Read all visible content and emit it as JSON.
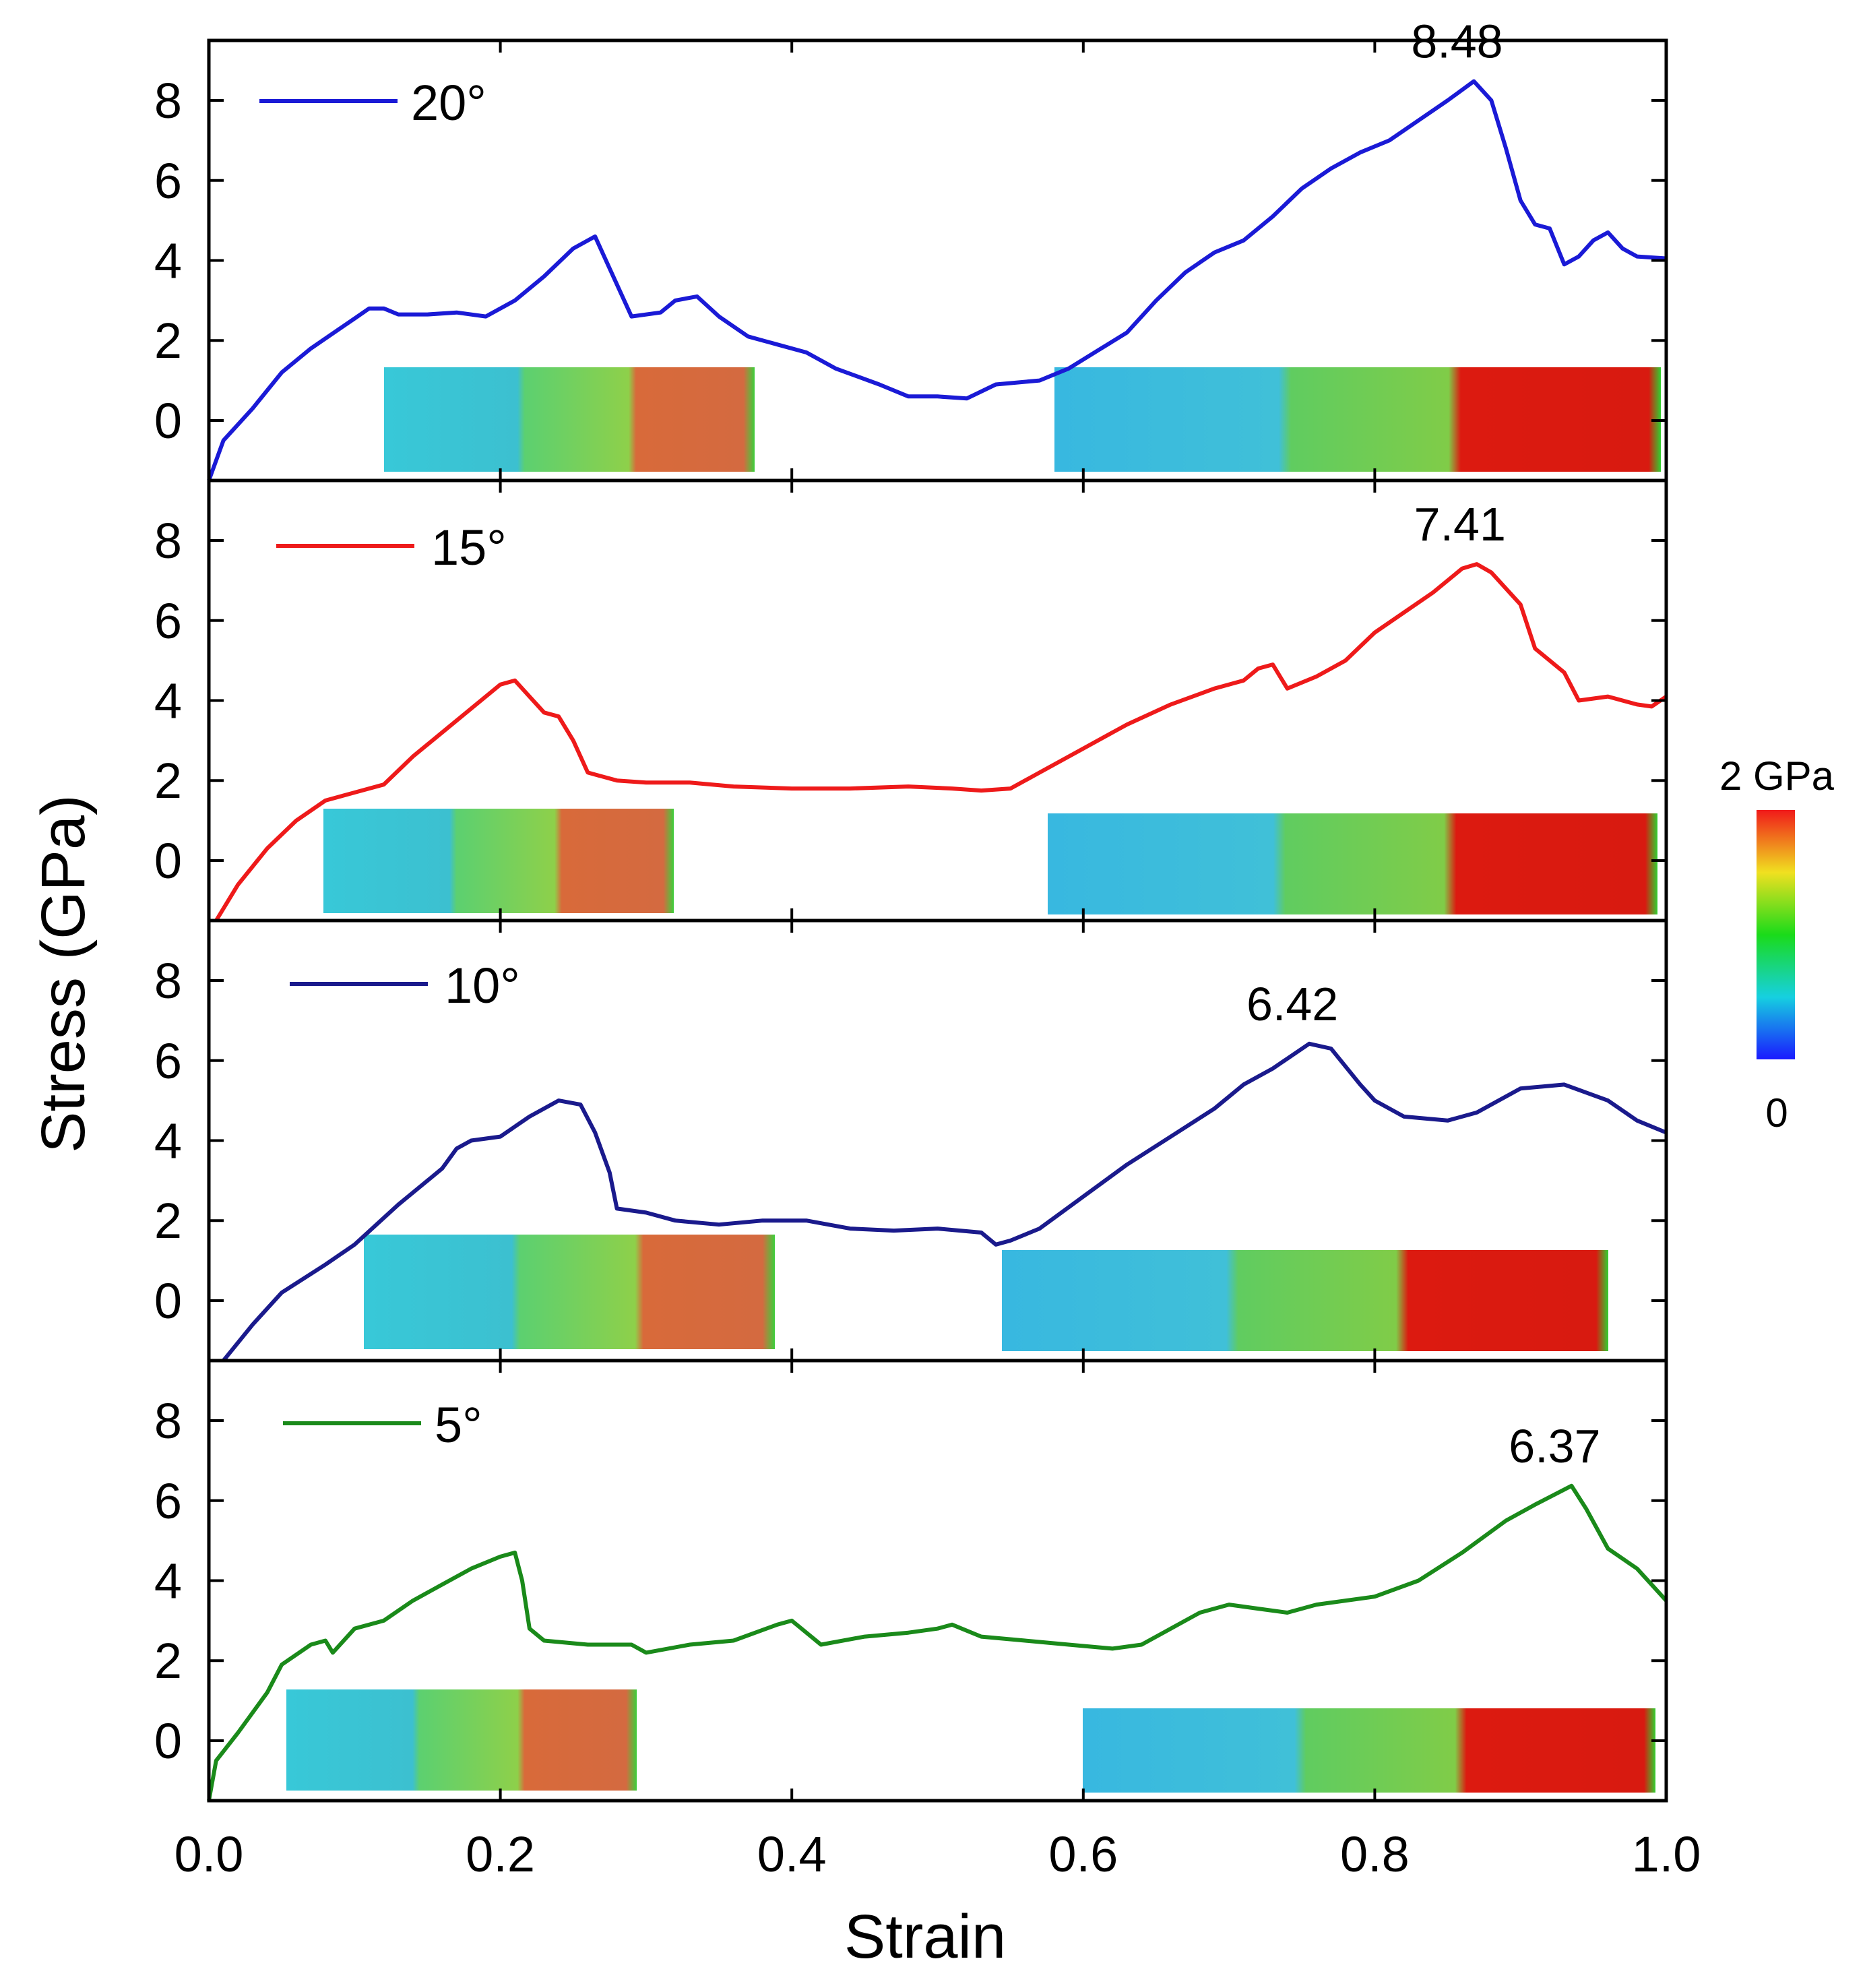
{
  "chart_data": {
    "type": "line",
    "xlabel": "Strain",
    "ylabel": "Stress (GPa)",
    "xlim": [
      0.0,
      1.0
    ],
    "ylim": [
      -1.5,
      9.5
    ],
    "xticks": [
      "0.0",
      "0.2",
      "0.4",
      "0.6",
      "0.8",
      "1.0"
    ],
    "xtick_values": [
      0.0,
      0.2,
      0.4,
      0.6,
      0.8,
      1.0
    ],
    "yticks": [
      "0",
      "2",
      "4",
      "6",
      "8"
    ],
    "ytick_values": [
      0,
      2,
      4,
      6,
      8
    ],
    "colorbar": {
      "max_label": "2 GPa",
      "min_label": "0"
    },
    "series": [
      {
        "name": "20°",
        "angle": "20",
        "color": "#1a1ad6",
        "peak_label": "8.48",
        "peak": [
          0.868,
          8.48
        ],
        "points": [
          [
            0,
            -1.5
          ],
          [
            0.01,
            -0.5
          ],
          [
            0.03,
            0.3
          ],
          [
            0.05,
            1.2
          ],
          [
            0.07,
            1.8
          ],
          [
            0.09,
            2.3
          ],
          [
            0.1,
            2.55
          ],
          [
            0.11,
            2.8
          ],
          [
            0.12,
            2.8
          ],
          [
            0.13,
            2.65
          ],
          [
            0.15,
            2.65
          ],
          [
            0.17,
            2.7
          ],
          [
            0.19,
            2.6
          ],
          [
            0.21,
            3.0
          ],
          [
            0.23,
            3.6
          ],
          [
            0.25,
            4.3
          ],
          [
            0.265,
            4.6
          ],
          [
            0.275,
            3.8
          ],
          [
            0.29,
            2.6
          ],
          [
            0.31,
            2.7
          ],
          [
            0.32,
            3.0
          ],
          [
            0.335,
            3.1
          ],
          [
            0.35,
            2.6
          ],
          [
            0.37,
            2.1
          ],
          [
            0.39,
            1.9
          ],
          [
            0.41,
            1.7
          ],
          [
            0.43,
            1.3
          ],
          [
            0.46,
            0.9
          ],
          [
            0.48,
            0.6
          ],
          [
            0.5,
            0.6
          ],
          [
            0.52,
            0.55
          ],
          [
            0.54,
            0.9
          ],
          [
            0.57,
            1.0
          ],
          [
            0.59,
            1.3
          ],
          [
            0.61,
            1.75
          ],
          [
            0.63,
            2.2
          ],
          [
            0.65,
            3.0
          ],
          [
            0.67,
            3.7
          ],
          [
            0.69,
            4.2
          ],
          [
            0.71,
            4.5
          ],
          [
            0.73,
            5.1
          ],
          [
            0.75,
            5.8
          ],
          [
            0.77,
            6.3
          ],
          [
            0.79,
            6.7
          ],
          [
            0.81,
            7.0
          ],
          [
            0.83,
            7.5
          ],
          [
            0.85,
            8.0
          ],
          [
            0.868,
            8.48
          ],
          [
            0.88,
            8.0
          ],
          [
            0.89,
            6.8
          ],
          [
            0.9,
            5.5
          ],
          [
            0.91,
            4.9
          ],
          [
            0.92,
            4.8
          ],
          [
            0.93,
            3.9
          ],
          [
            0.94,
            4.1
          ],
          [
            0.95,
            4.5
          ],
          [
            0.96,
            4.7
          ],
          [
            0.97,
            4.3
          ],
          [
            0.98,
            4.1
          ],
          [
            1.0,
            4.05
          ]
        ]
      },
      {
        "name": "15°",
        "angle": "15",
        "color": "#ee1a1a",
        "peak_label": "7.41",
        "peak": [
          0.87,
          7.41
        ],
        "points": [
          [
            0.005,
            -1.5
          ],
          [
            0.02,
            -0.6
          ],
          [
            0.04,
            0.3
          ],
          [
            0.06,
            1.0
          ],
          [
            0.08,
            1.5
          ],
          [
            0.1,
            1.7
          ],
          [
            0.12,
            1.9
          ],
          [
            0.14,
            2.6
          ],
          [
            0.16,
            3.2
          ],
          [
            0.18,
            3.8
          ],
          [
            0.2,
            4.4
          ],
          [
            0.21,
            4.5
          ],
          [
            0.22,
            4.1
          ],
          [
            0.23,
            3.7
          ],
          [
            0.24,
            3.6
          ],
          [
            0.25,
            3.0
          ],
          [
            0.26,
            2.2
          ],
          [
            0.28,
            2.0
          ],
          [
            0.3,
            1.95
          ],
          [
            0.33,
            1.95
          ],
          [
            0.36,
            1.85
          ],
          [
            0.4,
            1.8
          ],
          [
            0.44,
            1.8
          ],
          [
            0.48,
            1.85
          ],
          [
            0.51,
            1.8
          ],
          [
            0.53,
            1.75
          ],
          [
            0.55,
            1.8
          ],
          [
            0.57,
            2.2
          ],
          [
            0.6,
            2.8
          ],
          [
            0.63,
            3.4
          ],
          [
            0.66,
            3.9
          ],
          [
            0.69,
            4.3
          ],
          [
            0.71,
            4.5
          ],
          [
            0.72,
            4.8
          ],
          [
            0.73,
            4.9
          ],
          [
            0.74,
            4.3
          ],
          [
            0.76,
            4.6
          ],
          [
            0.78,
            5.0
          ],
          [
            0.8,
            5.7
          ],
          [
            0.82,
            6.2
          ],
          [
            0.84,
            6.7
          ],
          [
            0.86,
            7.3
          ],
          [
            0.87,
            7.41
          ],
          [
            0.88,
            7.2
          ],
          [
            0.9,
            6.4
          ],
          [
            0.91,
            5.3
          ],
          [
            0.93,
            4.7
          ],
          [
            0.94,
            4.0
          ],
          [
            0.96,
            4.1
          ],
          [
            0.98,
            3.9
          ],
          [
            0.99,
            3.85
          ],
          [
            1.0,
            4.1
          ]
        ]
      },
      {
        "name": "10°",
        "angle": "10",
        "color": "#1a1a8c",
        "peak_label": "6.42",
        "peak": [
          0.755,
          6.42
        ],
        "points": [
          [
            0.01,
            -1.5
          ],
          [
            0.03,
            -0.6
          ],
          [
            0.05,
            0.2
          ],
          [
            0.08,
            0.9
          ],
          [
            0.1,
            1.4
          ],
          [
            0.13,
            2.4
          ],
          [
            0.16,
            3.3
          ],
          [
            0.17,
            3.8
          ],
          [
            0.18,
            4.0
          ],
          [
            0.2,
            4.1
          ],
          [
            0.22,
            4.6
          ],
          [
            0.24,
            5.0
          ],
          [
            0.255,
            4.9
          ],
          [
            0.265,
            4.2
          ],
          [
            0.275,
            3.2
          ],
          [
            0.28,
            2.3
          ],
          [
            0.3,
            2.2
          ],
          [
            0.32,
            2.0
          ],
          [
            0.35,
            1.9
          ],
          [
            0.38,
            2.0
          ],
          [
            0.41,
            2.0
          ],
          [
            0.44,
            1.8
          ],
          [
            0.47,
            1.75
          ],
          [
            0.5,
            1.8
          ],
          [
            0.53,
            1.7
          ],
          [
            0.54,
            1.4
          ],
          [
            0.55,
            1.5
          ],
          [
            0.57,
            1.8
          ],
          [
            0.6,
            2.6
          ],
          [
            0.63,
            3.4
          ],
          [
            0.66,
            4.1
          ],
          [
            0.69,
            4.8
          ],
          [
            0.71,
            5.4
          ],
          [
            0.73,
            5.8
          ],
          [
            0.755,
            6.42
          ],
          [
            0.77,
            6.3
          ],
          [
            0.79,
            5.4
          ],
          [
            0.8,
            5.0
          ],
          [
            0.82,
            4.6
          ],
          [
            0.85,
            4.5
          ],
          [
            0.87,
            4.7
          ],
          [
            0.9,
            5.3
          ],
          [
            0.93,
            5.4
          ],
          [
            0.96,
            5.0
          ],
          [
            0.98,
            4.5
          ],
          [
            1.0,
            4.2
          ]
        ]
      },
      {
        "name": "5°",
        "angle": "5",
        "color": "#1a8a1a",
        "peak_label": "6.37",
        "peak": [
          0.935,
          6.37
        ],
        "points": [
          [
            0,
            -1.5
          ],
          [
            0.005,
            -0.5
          ],
          [
            0.02,
            0.2
          ],
          [
            0.04,
            1.2
          ],
          [
            0.05,
            1.9
          ],
          [
            0.07,
            2.4
          ],
          [
            0.08,
            2.5
          ],
          [
            0.085,
            2.2
          ],
          [
            0.1,
            2.8
          ],
          [
            0.12,
            3.0
          ],
          [
            0.14,
            3.5
          ],
          [
            0.16,
            3.9
          ],
          [
            0.18,
            4.3
          ],
          [
            0.2,
            4.6
          ],
          [
            0.21,
            4.7
          ],
          [
            0.215,
            4.0
          ],
          [
            0.22,
            2.8
          ],
          [
            0.23,
            2.5
          ],
          [
            0.26,
            2.4
          ],
          [
            0.29,
            2.4
          ],
          [
            0.3,
            2.2
          ],
          [
            0.33,
            2.4
          ],
          [
            0.36,
            2.5
          ],
          [
            0.39,
            2.9
          ],
          [
            0.4,
            3.0
          ],
          [
            0.41,
            2.7
          ],
          [
            0.42,
            2.4
          ],
          [
            0.45,
            2.6
          ],
          [
            0.48,
            2.7
          ],
          [
            0.5,
            2.8
          ],
          [
            0.51,
            2.9
          ],
          [
            0.53,
            2.6
          ],
          [
            0.56,
            2.5
          ],
          [
            0.59,
            2.4
          ],
          [
            0.62,
            2.3
          ],
          [
            0.64,
            2.4
          ],
          [
            0.66,
            2.8
          ],
          [
            0.68,
            3.2
          ],
          [
            0.7,
            3.4
          ],
          [
            0.72,
            3.3
          ],
          [
            0.74,
            3.2
          ],
          [
            0.76,
            3.4
          ],
          [
            0.8,
            3.6
          ],
          [
            0.83,
            4.0
          ],
          [
            0.86,
            4.7
          ],
          [
            0.89,
            5.5
          ],
          [
            0.91,
            5.9
          ],
          [
            0.935,
            6.37
          ],
          [
            0.945,
            5.8
          ],
          [
            0.96,
            4.8
          ],
          [
            0.98,
            4.3
          ],
          [
            1.0,
            3.5
          ]
        ]
      }
    ]
  }
}
